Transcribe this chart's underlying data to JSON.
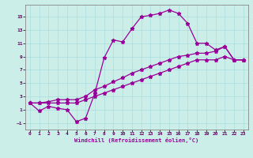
{
  "xlabel": "Windchill (Refroidissement éolien,°C)",
  "bg_color": "#cceee8",
  "line_color": "#990099",
  "xlim": [
    -0.5,
    23.5
  ],
  "ylim": [
    -2.0,
    16.8
  ],
  "xticks": [
    0,
    1,
    2,
    3,
    4,
    5,
    6,
    7,
    8,
    9,
    10,
    11,
    12,
    13,
    14,
    15,
    16,
    17,
    18,
    19,
    20,
    21,
    22,
    23
  ],
  "yticks": [
    -1,
    1,
    3,
    5,
    7,
    9,
    11,
    13,
    15
  ],
  "line1_y": [
    2.0,
    0.8,
    1.5,
    1.2,
    1.0,
    -0.8,
    -0.3,
    3.5,
    8.8,
    11.5,
    11.2,
    13.2,
    15.0,
    15.2,
    15.5,
    16.0,
    15.5,
    14.0,
    11.0,
    11.0,
    10.0,
    10.5,
    8.5,
    8.5
  ],
  "line2_y": [
    2.0,
    2.0,
    2.2,
    2.5,
    2.5,
    2.5,
    3.0,
    4.0,
    4.5,
    5.2,
    5.8,
    6.5,
    7.0,
    7.5,
    8.0,
    8.5,
    9.0,
    9.2,
    9.5,
    9.5,
    9.8,
    10.5,
    8.5,
    8.5
  ],
  "line3_y": [
    2.0,
    2.0,
    2.0,
    2.0,
    2.0,
    2.0,
    2.5,
    3.0,
    3.5,
    4.0,
    4.5,
    5.0,
    5.5,
    6.0,
    6.5,
    7.0,
    7.5,
    8.0,
    8.5,
    8.5,
    8.5,
    9.0,
    8.5,
    8.5
  ],
  "grid_color": "#aadddd",
  "marker_size": 3.5,
  "linewidth": 0.9
}
